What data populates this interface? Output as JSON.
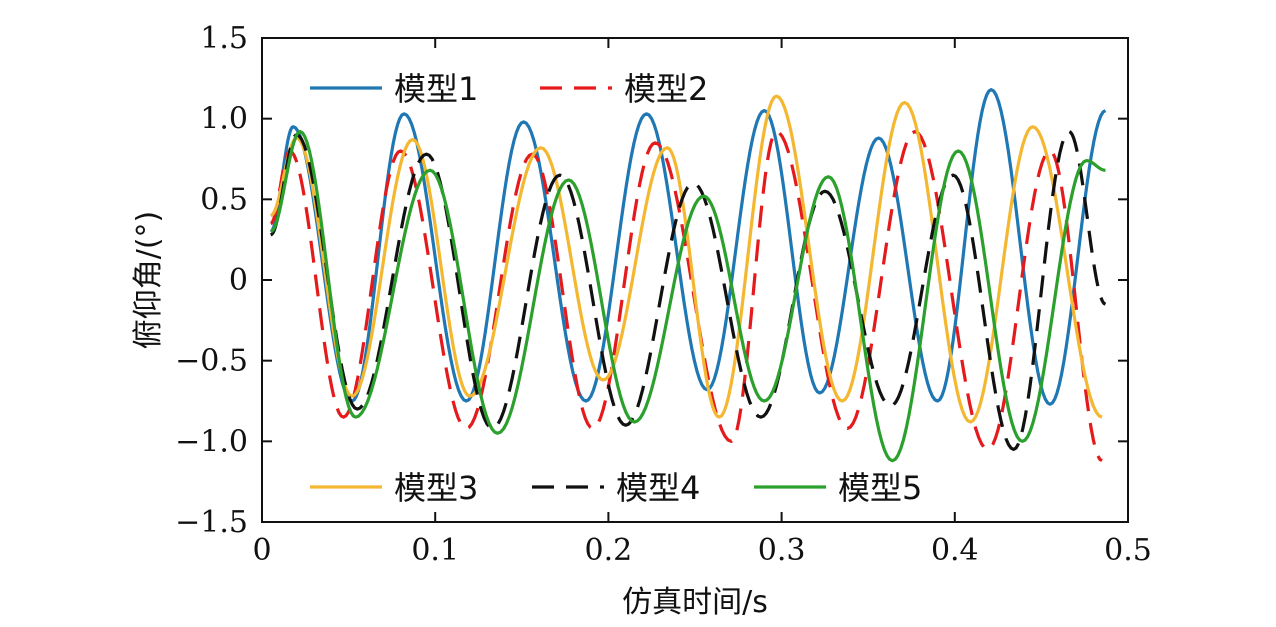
{
  "chart_data": {
    "type": "line",
    "xlabel": "仿真时间/s",
    "ylabel": "俯仰角/(°)",
    "xlim": [
      0,
      0.5
    ],
    "ylim": [
      -1.5,
      1.5
    ],
    "x_ticks": [
      "0",
      "0.1",
      "0.2",
      "0.3",
      "0.4",
      "0.5"
    ],
    "y_ticks": [
      "1.5",
      "1.0",
      "0.5",
      "0",
      "−0.5",
      "−1.0",
      "−1.5"
    ],
    "grid": false,
    "series": [
      {
        "name": "模型1",
        "color": "#1f77b4",
        "dash": "solid",
        "legend_group": "top",
        "x": [
          0.005,
          0.018,
          0.052,
          0.082,
          0.118,
          0.151,
          0.187,
          0.222,
          0.257,
          0.29,
          0.322,
          0.356,
          0.39,
          0.421,
          0.455,
          0.487
        ],
        "y": [
          0.3,
          0.95,
          -0.75,
          1.03,
          -0.75,
          0.98,
          -0.75,
          1.03,
          -0.68,
          1.05,
          -0.7,
          0.88,
          -0.75,
          1.18,
          -0.77,
          1.05
        ]
      },
      {
        "name": "模型2",
        "color": "#e41a1c",
        "dash": "dashed",
        "legend_group": "top",
        "x": [
          0.005,
          0.016,
          0.047,
          0.08,
          0.118,
          0.156,
          0.191,
          0.227,
          0.271,
          0.297,
          0.338,
          0.377,
          0.419,
          0.455,
          0.485
        ],
        "y": [
          0.35,
          0.8,
          -0.85,
          0.8,
          -0.92,
          0.78,
          -0.92,
          0.85,
          -1.0,
          0.92,
          -0.92,
          0.92,
          -1.05,
          0.8,
          -1.12
        ]
      },
      {
        "name": "模型3",
        "color": "#f4b731",
        "dash": "solid",
        "legend_group": "bottom",
        "x": [
          0.005,
          0.02,
          0.052,
          0.087,
          0.12,
          0.161,
          0.197,
          0.234,
          0.264,
          0.297,
          0.335,
          0.371,
          0.409,
          0.445,
          0.485
        ],
        "y": [
          0.4,
          0.88,
          -0.72,
          0.87,
          -0.72,
          0.82,
          -0.62,
          0.82,
          -0.85,
          1.14,
          -0.75,
          1.1,
          -0.88,
          0.95,
          -0.85
        ]
      },
      {
        "name": "模型4",
        "color": "#111111",
        "dash": "dashed",
        "legend_group": "bottom",
        "x": [
          0.005,
          0.02,
          0.055,
          0.095,
          0.133,
          0.172,
          0.21,
          0.249,
          0.288,
          0.325,
          0.363,
          0.399,
          0.434,
          0.466,
          0.487
        ],
        "y": [
          0.28,
          0.9,
          -0.8,
          0.78,
          -0.92,
          0.65,
          -0.9,
          0.6,
          -0.85,
          0.55,
          -0.78,
          0.65,
          -1.05,
          0.92,
          -0.15
        ]
      },
      {
        "name": "模型5",
        "color": "#2ca02c",
        "dash": "solid",
        "legend_group": "bottom",
        "x": [
          0.005,
          0.022,
          0.054,
          0.097,
          0.136,
          0.177,
          0.215,
          0.255,
          0.29,
          0.327,
          0.364,
          0.402,
          0.439,
          0.476,
          0.487
        ],
        "y": [
          0.3,
          0.92,
          -0.85,
          0.68,
          -0.95,
          0.62,
          -0.88,
          0.52,
          -0.75,
          0.64,
          -1.12,
          0.8,
          -1.0,
          0.74,
          0.68
        ]
      }
    ]
  }
}
